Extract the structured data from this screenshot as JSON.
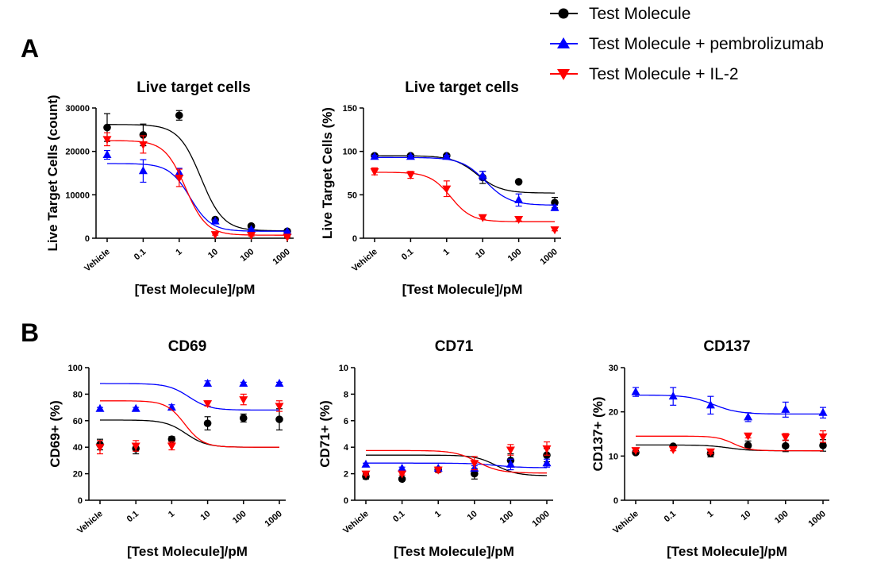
{
  "panel_labels": [
    "A",
    "B"
  ],
  "legend": [
    {
      "label": "Test Molecule",
      "color": "#000000",
      "marker": "circle"
    },
    {
      "label": "Test Molecule + pembrolizumab",
      "color": "#0000ff",
      "marker": "triangle-up"
    },
    {
      "label": "Test Molecule + IL-2",
      "color": "#ff0000",
      "marker": "triangle-down"
    }
  ],
  "chart_data": [
    {
      "panel": "A",
      "type": "scatter",
      "title": "Live target cells",
      "xlabel": "[Test Molecule]/pM",
      "ylabel": "Live Target Cells (count)",
      "xscale": "log",
      "x_ticks": [
        "Vehicle",
        "0.1",
        "1",
        "10",
        "100",
        "1000"
      ],
      "x": [
        0.01,
        0.1,
        1,
        10,
        100,
        1000
      ],
      "ylim": [
        0,
        30000
      ],
      "y_ticks": [
        0,
        10000,
        20000,
        30000
      ],
      "series": [
        {
          "name": "Test Molecule",
          "marker": "circle",
          "color": "#000000",
          "values": [
            25500,
            23800,
            28300,
            4300,
            2800,
            1600
          ],
          "errors": [
            3200,
            2500,
            1100,
            400,
            300,
            200
          ],
          "fit": {
            "top": 26200,
            "bottom": 1700,
            "ec50": 4,
            "hill": 1.4
          }
        },
        {
          "name": "Test Molecule + pembrolizumab",
          "marker": "triangle-up",
          "color": "#0000ff",
          "values": [
            19200,
            15500,
            15100,
            3900,
            2000,
            1500
          ],
          "errors": [
            1000,
            2600,
            1000,
            300,
            200,
            150
          ],
          "fit": {
            "top": 17200,
            "bottom": 1600,
            "ec50": 2,
            "hill": 1.5
          }
        },
        {
          "name": "Test Molecule + IL-2",
          "marker": "triangle-down",
          "color": "#ff0000",
          "values": [
            22800,
            21600,
            13900,
            900,
            700,
            300
          ],
          "errors": [
            1500,
            2000,
            2000,
            200,
            200,
            100
          ],
          "fit": {
            "top": 22500,
            "bottom": 700,
            "ec50": 1.5,
            "hill": 1.5
          }
        }
      ]
    },
    {
      "panel": "A",
      "type": "scatter",
      "title": "Live target cells",
      "xlabel": "[Test Molecule]/pM",
      "ylabel": "Live Target Cells (%)",
      "xscale": "log",
      "x_ticks": [
        "Vehicle",
        "0.1",
        "1",
        "10",
        "100",
        "1000"
      ],
      "x": [
        0.01,
        0.1,
        1,
        10,
        100,
        1000
      ],
      "ylim": [
        0,
        150
      ],
      "y_ticks": [
        0,
        50,
        100,
        150
      ],
      "series": [
        {
          "name": "Test Molecule",
          "marker": "circle",
          "color": "#000000",
          "values": [
            95,
            95,
            95,
            70,
            65,
            41
          ],
          "errors": [
            2,
            1.5,
            1.5,
            7,
            1.5,
            6
          ],
          "fit": {
            "top": 95,
            "bottom": 52,
            "ec50": 7,
            "hill": 1.3
          }
        },
        {
          "name": "Test Molecule + pembrolizumab",
          "marker": "triangle-up",
          "color": "#0000ff",
          "values": [
            94,
            94,
            94,
            72,
            44,
            35
          ],
          "errors": [
            1.5,
            1.5,
            1.5,
            5,
            7,
            3
          ],
          "fit": {
            "top": 93,
            "bottom": 38,
            "ec50": 12,
            "hill": 1.3
          }
        },
        {
          "name": "Test Molecule + IL-2",
          "marker": "triangle-down",
          "color": "#ff0000",
          "values": [
            77,
            73,
            57,
            24,
            22,
            10
          ],
          "errors": [
            4,
            4,
            9,
            2,
            2,
            1.5
          ],
          "fit": {
            "top": 76,
            "bottom": 19,
            "ec50": 1.3,
            "hill": 1.5
          }
        }
      ]
    },
    {
      "panel": "B",
      "type": "scatter",
      "title": "CD69",
      "xlabel": "[Test Molecule]/pM",
      "ylabel": "CD69+ (%)",
      "xscale": "log",
      "x_ticks": [
        "Vehicle",
        "0.1",
        "1",
        "10",
        "100",
        "1000"
      ],
      "x": [
        0.01,
        0.1,
        1,
        10,
        100,
        1000
      ],
      "ylim": [
        0,
        100
      ],
      "y_ticks": [
        0,
        20,
        40,
        60,
        80,
        100
      ],
      "series": [
        {
          "name": "Test Molecule",
          "marker": "circle",
          "color": "#000000",
          "values": [
            42,
            39,
            46,
            58,
            62,
            61
          ],
          "errors": [
            4,
            4,
            2,
            5,
            3,
            8
          ],
          "fit": {
            "top": 60.5,
            "bottom": 40,
            "ec50": 2.5,
            "hill": 1.5
          }
        },
        {
          "name": "Test Molecule + pembrolizumab",
          "marker": "triangle-up",
          "color": "#0000ff",
          "values": [
            69,
            69,
            70,
            88,
            88,
            88
          ],
          "errors": [
            1,
            1,
            2,
            2,
            1,
            1
          ],
          "fit": {
            "top": 88,
            "bottom": 68,
            "ec50": 3,
            "hill": 1.5
          }
        },
        {
          "name": "Test Molecule + IL-2",
          "marker": "triangle-down",
          "color": "#ff0000",
          "values": [
            40,
            41,
            41,
            73,
            76,
            71
          ],
          "errors": [
            5,
            4,
            3,
            2,
            4,
            4
          ],
          "fit": {
            "top": 75,
            "bottom": 40,
            "ec50": 2.3,
            "hill": 1.7
          }
        }
      ]
    },
    {
      "panel": "B",
      "type": "scatter",
      "title": "CD71",
      "xlabel": "[Test Molecule]/pM",
      "ylabel": "CD71+ (%)",
      "xscale": "log",
      "x_ticks": [
        "Vehicle",
        "0.1",
        "1",
        "10",
        "100",
        "1000"
      ],
      "x": [
        0.01,
        0.1,
        1,
        10,
        100,
        1000
      ],
      "ylim": [
        0,
        10
      ],
      "y_ticks": [
        0,
        2,
        4,
        6,
        8,
        10
      ],
      "series": [
        {
          "name": "Test Molecule",
          "marker": "circle",
          "color": "#000000",
          "values": [
            1.8,
            1.6,
            2.3,
            2.0,
            3.0,
            3.4
          ],
          "errors": [
            0.2,
            0.1,
            0.2,
            0.4,
            0.5,
            0.5
          ],
          "fit": {
            "top": 3.4,
            "bottom": 1.85,
            "ec50": 40,
            "hill": 1.5
          }
        },
        {
          "name": "Test Molecule + pembrolizumab",
          "marker": "triangle-up",
          "color": "#0000ff",
          "values": [
            2.7,
            2.4,
            2.4,
            2.4,
            2.7,
            2.8
          ],
          "errors": [
            0.1,
            0.1,
            0.1,
            0.2,
            0.4,
            0.3
          ],
          "fit": {
            "top": 2.8,
            "bottom": 2.45,
            "ec50": 40,
            "hill": 1.2
          }
        },
        {
          "name": "Test Molecule + IL-2",
          "marker": "triangle-down",
          "color": "#ff0000",
          "values": [
            2.0,
            2.0,
            2.3,
            2.8,
            3.8,
            3.9
          ],
          "errors": [
            0.1,
            0.1,
            0.2,
            0.5,
            0.4,
            0.5
          ],
          "fit": {
            "top": 3.75,
            "bottom": 2.05,
            "ec50": 12,
            "hill": 1.4
          }
        }
      ]
    },
    {
      "panel": "B",
      "type": "scatter",
      "title": "CD137",
      "xlabel": "[Test Molecule]/pM",
      "ylabel": "CD137+ (%)",
      "xscale": "log",
      "x_ticks": [
        "Vehicle",
        "0.1",
        "1",
        "10",
        "100",
        "1000"
      ],
      "x": [
        0.01,
        0.1,
        1,
        10,
        100,
        1000
      ],
      "ylim": [
        0,
        30
      ],
      "y_ticks": [
        0,
        10,
        20,
        30
      ],
      "series": [
        {
          "name": "Test Molecule",
          "marker": "circle",
          "color": "#000000",
          "values": [
            10.8,
            12.2,
            10.6,
            12.4,
            12.3,
            12.4
          ],
          "errors": [
            0.4,
            0.3,
            0.8,
            1,
            1.3,
            1.3
          ],
          "fit": {
            "top": 12.5,
            "bottom": 11.2,
            "ec50": 3,
            "hill": 1.5
          }
        },
        {
          "name": "Test Molecule + pembrolizumab",
          "marker": "triangle-up",
          "color": "#0000ff",
          "values": [
            24.5,
            23.5,
            21.5,
            18.8,
            20.5,
            19.8
          ],
          "errors": [
            1,
            2,
            2,
            1,
            1.7,
            1.2
          ],
          "fit": {
            "top": 23.8,
            "bottom": 19.5,
            "ec50": 1.2,
            "hill": 1.3
          }
        },
        {
          "name": "Test Molecule + IL-2",
          "marker": "triangle-down",
          "color": "#ff0000",
          "values": [
            11.3,
            11.5,
            11.0,
            14.6,
            14.3,
            14.4
          ],
          "errors": [
            0.3,
            0.3,
            0.5,
            0.5,
            0.8,
            1.3
          ],
          "fit": {
            "top": 14.5,
            "bottom": 11.2,
            "ec50": 4,
            "hill": 2
          }
        }
      ]
    }
  ]
}
